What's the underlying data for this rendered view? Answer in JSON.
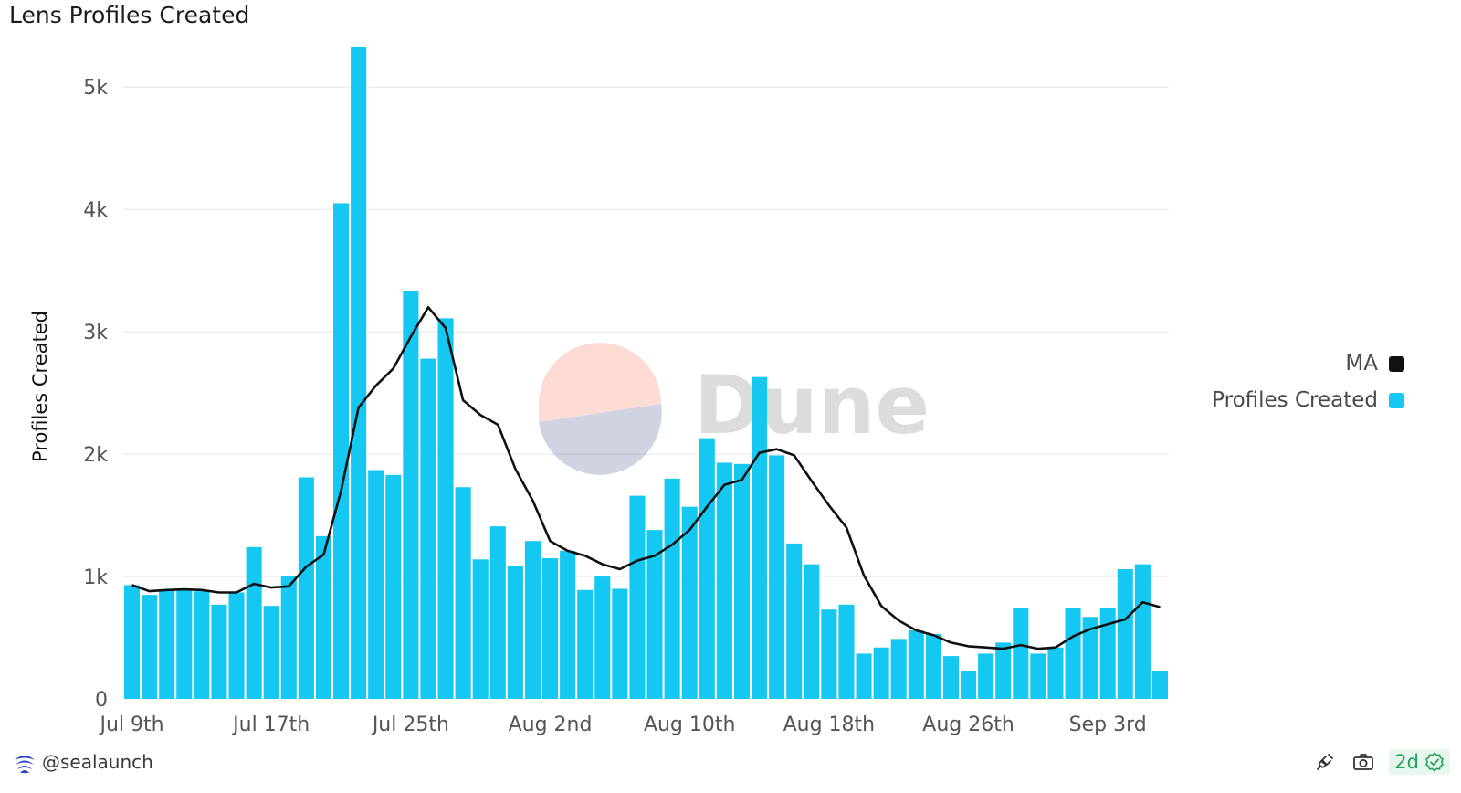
{
  "chart_data": {
    "type": "bar",
    "title": "Lens Profiles Created",
    "ylabel": "Profiles Created",
    "xlabel": "",
    "ylim": [
      0,
      5300
    ],
    "yticks": [
      0,
      1000,
      2000,
      3000,
      4000,
      5000
    ],
    "ytick_labels": [
      "0",
      "1k",
      "2k",
      "3k",
      "4k",
      "5k"
    ],
    "xtick_labels": [
      {
        "label": "Jul 9th",
        "index": 0
      },
      {
        "label": "Jul 17th",
        "index": 8
      },
      {
        "label": "Jul 25th",
        "index": 16
      },
      {
        "label": "Aug 2nd",
        "index": 24
      },
      {
        "label": "Aug 10th",
        "index": 32
      },
      {
        "label": "Aug 18th",
        "index": 40
      },
      {
        "label": "Aug 26th",
        "index": 48
      },
      {
        "label": "Sep 3rd",
        "index": 56
      }
    ],
    "grid": true,
    "legend_position": "right",
    "series": [
      {
        "name": "Profiles Created",
        "type": "bar",
        "color": "#14c8f2",
        "values": [
          930,
          850,
          890,
          900,
          880,
          770,
          870,
          1240,
          760,
          1000,
          1810,
          1330,
          4050,
          5330,
          1870,
          1830,
          3330,
          2780,
          3110,
          1730,
          1140,
          1410,
          1090,
          1290,
          1150,
          1210,
          890,
          1000,
          900,
          1660,
          1380,
          1800,
          1570,
          2130,
          1930,
          1920,
          2630,
          1990,
          1270,
          1100,
          730,
          770,
          370,
          420,
          490,
          560,
          530,
          350,
          230,
          370,
          460,
          740,
          370,
          420,
          740,
          670,
          740,
          1060,
          1100,
          230
        ]
      },
      {
        "name": "MA",
        "type": "line",
        "color": "#111111",
        "values": [
          930,
          880,
          890,
          895,
          890,
          870,
          870,
          940,
          910,
          920,
          1080,
          1180,
          1700,
          2380,
          2560,
          2700,
          2960,
          3200,
          3030,
          2440,
          2320,
          2240,
          1880,
          1620,
          1290,
          1210,
          1170,
          1100,
          1060,
          1130,
          1170,
          1260,
          1380,
          1570,
          1750,
          1790,
          2010,
          2040,
          1990,
          1780,
          1580,
          1400,
          1010,
          760,
          640,
          560,
          520,
          460,
          430,
          420,
          410,
          440,
          410,
          420,
          510,
          570,
          610,
          650,
          790,
          750
        ]
      }
    ]
  },
  "watermark": "Dune",
  "legend": [
    {
      "label": "MA",
      "color": "#111111"
    },
    {
      "label": "Profiles Created",
      "color": "#14c8f2"
    }
  ],
  "footer": {
    "username": "@sealaunch",
    "age": "2d"
  }
}
